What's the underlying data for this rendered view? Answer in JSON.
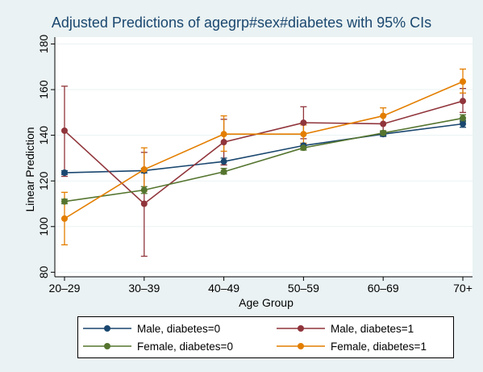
{
  "chart_data": {
    "type": "line",
    "title": "Adjusted Predictions of agegrp#sex#diabetes with 95% CIs",
    "xlabel": "Age Group",
    "ylabel": "Linear Prediction",
    "categories": [
      "20–29",
      "30–39",
      "40–49",
      "50–59",
      "60–69",
      "70+"
    ],
    "ylim": [
      78,
      183
    ],
    "yticks": [
      80,
      100,
      120,
      140,
      160,
      180
    ],
    "grid": true,
    "legend_position": "bottom",
    "series": [
      {
        "name": "Male, diabetes=0",
        "color": "#1a476f",
        "values": [
          123.6,
          124.5,
          128.5,
          135.5,
          140.5,
          145.0
        ],
        "ci_lower": [
          122.8,
          123.5,
          127.0,
          134.5,
          139.5,
          143.5
        ],
        "ci_upper": [
          124.5,
          125.5,
          130.0,
          136.5,
          141.5,
          146.5
        ]
      },
      {
        "name": "Male, diabetes=1",
        "color": "#90353b",
        "values": [
          142.0,
          110.0,
          137.0,
          145.5,
          145.0,
          155.0
        ],
        "ci_lower": [
          122.0,
          87.0,
          127.0,
          138.5,
          141.5,
          150.0
        ],
        "ci_upper": [
          161.5,
          132.5,
          147.0,
          152.5,
          148.5,
          160.5
        ]
      },
      {
        "name": "Female, diabetes=0",
        "color": "#55752f",
        "values": [
          111.0,
          116.0,
          124.0,
          134.5,
          141.0,
          147.5
        ],
        "ci_lower": [
          110.0,
          114.5,
          123.0,
          133.5,
          140.0,
          146.0
        ],
        "ci_upper": [
          112.0,
          117.5,
          125.5,
          135.5,
          142.0,
          149.0
        ]
      },
      {
        "name": "Female, diabetes=1",
        "color": "#e37e00",
        "values": [
          103.5,
          125.0,
          140.5,
          140.5,
          148.5,
          163.5
        ],
        "ci_lower": [
          92.0,
          115.5,
          133.0,
          136.5,
          145.0,
          158.5
        ],
        "ci_upper": [
          115.0,
          134.5,
          148.5,
          144.5,
          152.0,
          169.0
        ]
      }
    ]
  }
}
